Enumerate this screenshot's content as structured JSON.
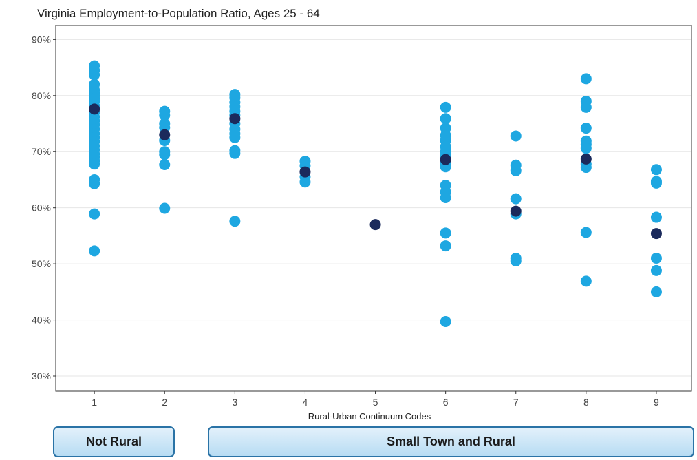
{
  "chart_data": {
    "type": "scatter",
    "title": "Virginia Employment-to-Population Ratio, Ages 25 - 64",
    "xlabel": "Rural-Urban Continuum Codes",
    "ylabel": "",
    "x_ticks": [
      "1",
      "2",
      "3",
      "4",
      "5",
      "6",
      "7",
      "8",
      "9"
    ],
    "y_ticks": [
      "30%",
      "40%",
      "50%",
      "60%",
      "70%",
      "80%",
      "90%"
    ],
    "y_tick_values": [
      30,
      40,
      50,
      60,
      70,
      80,
      90
    ],
    "xlim": [
      0.45,
      9.5
    ],
    "ylim": [
      27.3,
      92.5
    ],
    "grid": true,
    "colors": {
      "county": "#1ea7e1",
      "median": "#1b2a5c"
    },
    "series": [
      {
        "role": "county",
        "points": [
          [
            1,
            85.3
          ],
          [
            1,
            84.5
          ],
          [
            1,
            83.7
          ],
          [
            1,
            82
          ],
          [
            1,
            81
          ],
          [
            1,
            80.5
          ],
          [
            1,
            80
          ],
          [
            1,
            79.5
          ],
          [
            1,
            79
          ],
          [
            1,
            78.2
          ],
          [
            1,
            77
          ],
          [
            1,
            76.2
          ],
          [
            1,
            75.5
          ],
          [
            1,
            74.8
          ],
          [
            1,
            74
          ],
          [
            1,
            73.2
          ],
          [
            1,
            72.5
          ],
          [
            1,
            71.8
          ],
          [
            1,
            71
          ],
          [
            1,
            70.3
          ],
          [
            1,
            69.6
          ],
          [
            1,
            69
          ],
          [
            1,
            68.4
          ],
          [
            1,
            67.8
          ],
          [
            1,
            65
          ],
          [
            1,
            64.3
          ],
          [
            1,
            58.9
          ],
          [
            1,
            52.3
          ],
          [
            2,
            77.2
          ],
          [
            2,
            76.5
          ],
          [
            2,
            75
          ],
          [
            2,
            74.3
          ],
          [
            2,
            72
          ],
          [
            2,
            70
          ],
          [
            2,
            69.5
          ],
          [
            2,
            67.7
          ],
          [
            2,
            59.9
          ],
          [
            3,
            80.2
          ],
          [
            3,
            79.6
          ],
          [
            3,
            78.8
          ],
          [
            3,
            78
          ],
          [
            3,
            77.2
          ],
          [
            3,
            76.5
          ],
          [
            3,
            75
          ],
          [
            3,
            74
          ],
          [
            3,
            73.2
          ],
          [
            3,
            72.5
          ],
          [
            3,
            70.2
          ],
          [
            3,
            69.7
          ],
          [
            3,
            57.6
          ],
          [
            4,
            68.3
          ],
          [
            4,
            67.5
          ],
          [
            4,
            65.5
          ],
          [
            4,
            64.6
          ],
          [
            6,
            77.9
          ],
          [
            6,
            75.9
          ],
          [
            6,
            74.2
          ],
          [
            6,
            72.9
          ],
          [
            6,
            72
          ],
          [
            6,
            70.9
          ],
          [
            6,
            70
          ],
          [
            6,
            69.2
          ],
          [
            6,
            68
          ],
          [
            6,
            67.3
          ],
          [
            6,
            64
          ],
          [
            6,
            62.8
          ],
          [
            6,
            61.8
          ],
          [
            6,
            55.5
          ],
          [
            6,
            53.2
          ],
          [
            6,
            39.7
          ],
          [
            7,
            72.8
          ],
          [
            7,
            67.6
          ],
          [
            7,
            66.6
          ],
          [
            7,
            61.6
          ],
          [
            7,
            58.9
          ],
          [
            7,
            51
          ],
          [
            7,
            50.5
          ],
          [
            8,
            83
          ],
          [
            8,
            79
          ],
          [
            8,
            77.9
          ],
          [
            8,
            74.2
          ],
          [
            8,
            71.9
          ],
          [
            8,
            71.3
          ],
          [
            8,
            70.6
          ],
          [
            8,
            67.8
          ],
          [
            8,
            67.2
          ],
          [
            8,
            55.6
          ],
          [
            8,
            46.9
          ],
          [
            9,
            66.8
          ],
          [
            9,
            64.7
          ],
          [
            9,
            64.4
          ],
          [
            9,
            58.3
          ],
          [
            9,
            51
          ],
          [
            9,
            48.8
          ],
          [
            9,
            45
          ]
        ]
      },
      {
        "role": "median",
        "points": [
          [
            1,
            77.6
          ],
          [
            2,
            73
          ],
          [
            3,
            75.9
          ],
          [
            4,
            66.4
          ],
          [
            5,
            57
          ],
          [
            6,
            68.6
          ],
          [
            7,
            59.4
          ],
          [
            8,
            68.7
          ],
          [
            9,
            55.4
          ]
        ]
      }
    ]
  },
  "groups": [
    {
      "label": "Not Rural"
    },
    {
      "label": "Small Town and Rural"
    }
  ]
}
